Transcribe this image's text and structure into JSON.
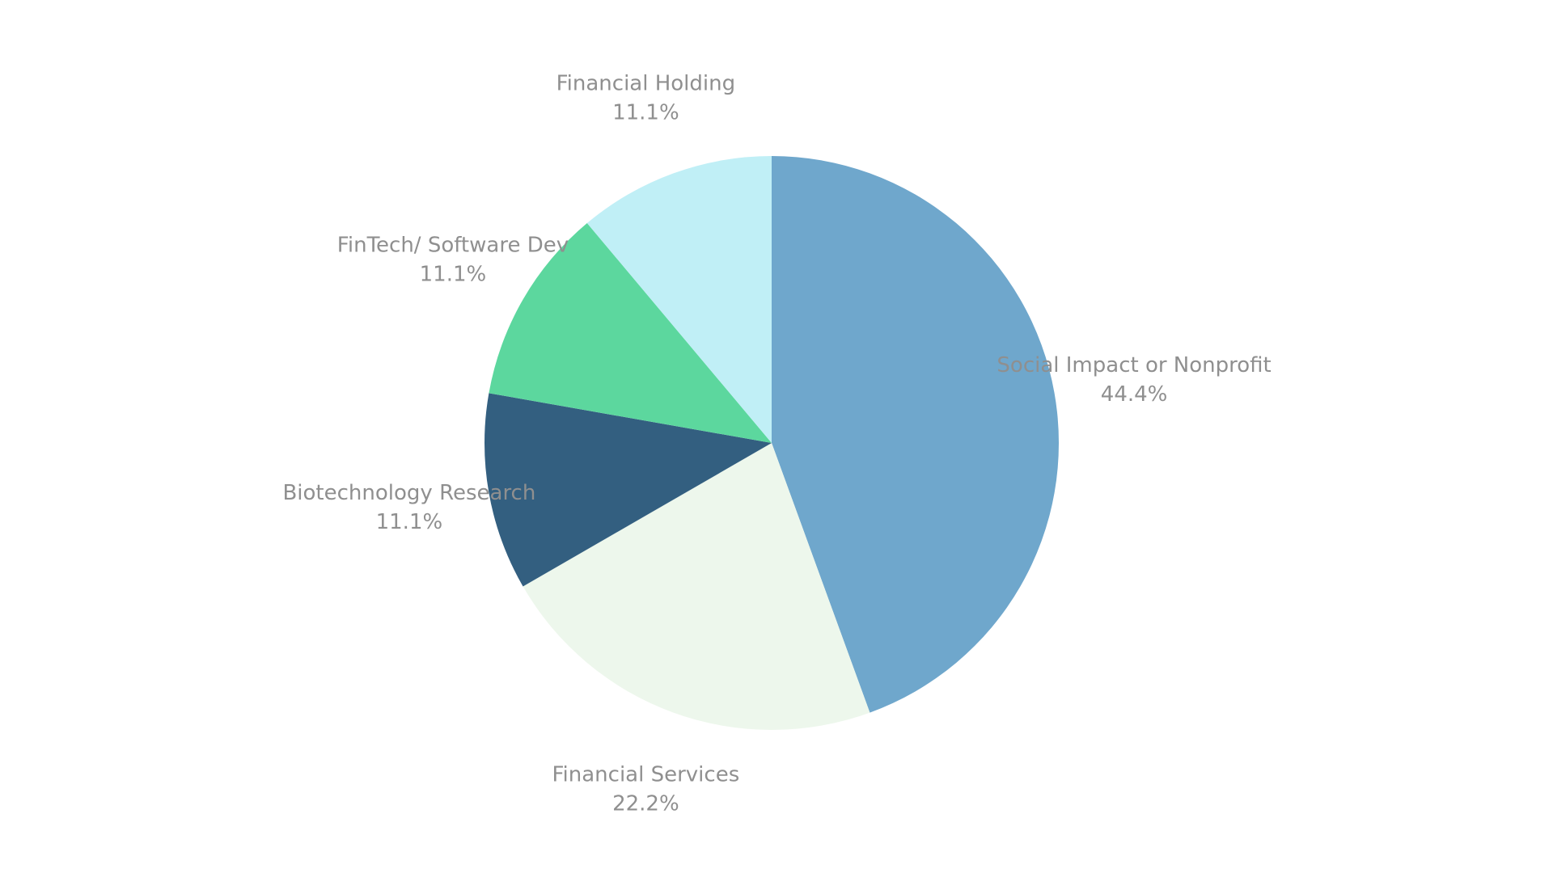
{
  "chart_data": {
    "type": "pie",
    "title": "",
    "start_angle_deg": 0,
    "direction": "clockwise",
    "legend": "none",
    "slices": [
      {
        "label": "Social Impact or Nonprofit",
        "value": 44.4,
        "value_label": "44.4%",
        "color": "#6fa7cc"
      },
      {
        "label": "Financial Services",
        "value": 22.2,
        "value_label": "22.2%",
        "color": "#edf7ec"
      },
      {
        "label": "Biotechnology Research",
        "value": 11.1,
        "value_label": "11.1%",
        "color": "#335f80"
      },
      {
        "label": "FinTech/ Software Dev",
        "value": 11.1,
        "value_label": "11.1%",
        "color": "#5cd79e"
      },
      {
        "label": "Financial Holding",
        "value": 11.1,
        "value_label": "11.1%",
        "color": "#c0eff6"
      }
    ]
  }
}
